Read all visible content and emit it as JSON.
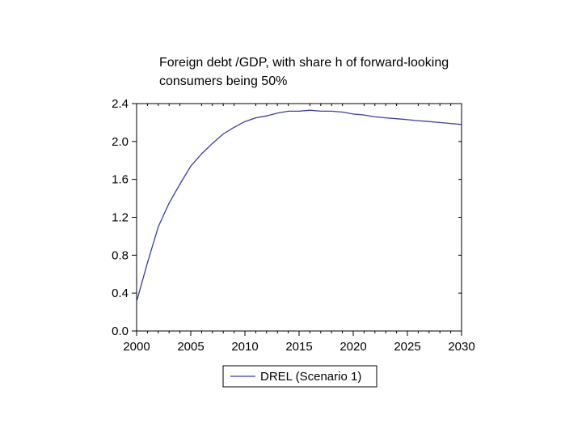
{
  "chart_data": {
    "type": "line",
    "title_line1": "Foreign debt /GDP, with share h of forward-looking",
    "title_line2": "consumers being 50%",
    "xlabel": "",
    "ylabel": "",
    "xlim": [
      2000,
      2030
    ],
    "ylim": [
      0.0,
      2.4
    ],
    "xticks": [
      "2000",
      "2005",
      "2010",
      "2015",
      "2020",
      "2025",
      "2030"
    ],
    "yticks": [
      "0.0",
      "0.4",
      "0.8",
      "1.2",
      "1.6",
      "2.0",
      "2.4"
    ],
    "legend_position": "bottom",
    "grid": false,
    "series": [
      {
        "name": "DREL (Scenario 1)",
        "color": "#3b3ba8",
        "x": [
          2000,
          2001,
          2002,
          2003,
          2004,
          2005,
          2006,
          2007,
          2008,
          2009,
          2010,
          2011,
          2012,
          2013,
          2014,
          2015,
          2016,
          2017,
          2018,
          2019,
          2020,
          2021,
          2022,
          2023,
          2024,
          2025,
          2026,
          2027,
          2028,
          2029,
          2030
        ],
        "y": [
          0.31,
          0.72,
          1.1,
          1.35,
          1.55,
          1.74,
          1.87,
          1.98,
          2.08,
          2.15,
          2.21,
          2.25,
          2.27,
          2.3,
          2.32,
          2.32,
          2.33,
          2.32,
          2.32,
          2.31,
          2.29,
          2.28,
          2.26,
          2.25,
          2.24,
          2.23,
          2.22,
          2.21,
          2.2,
          2.19,
          2.18
        ]
      }
    ]
  }
}
